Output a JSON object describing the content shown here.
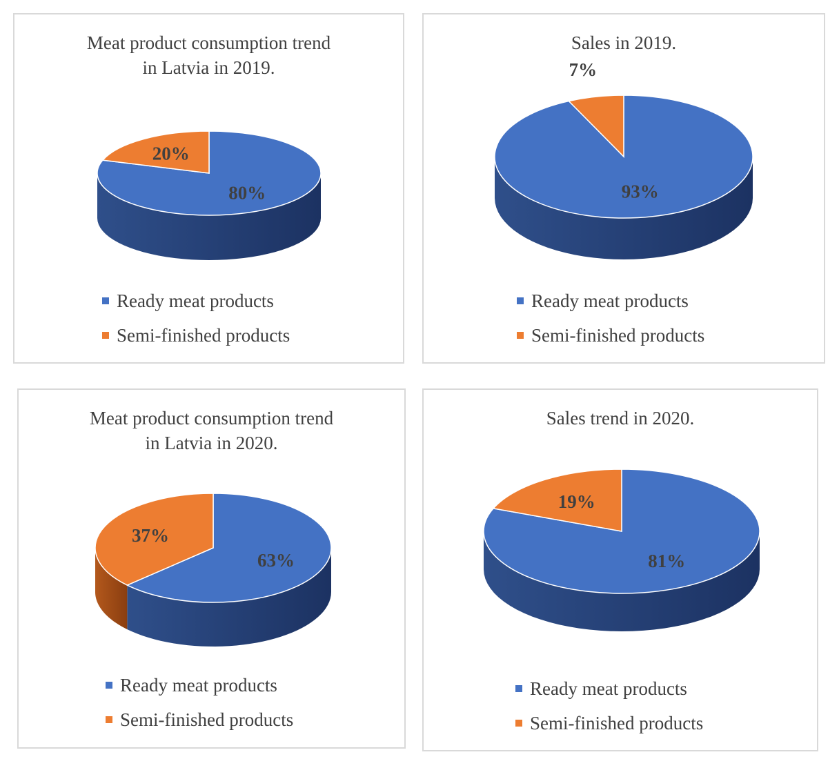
{
  "colors": {
    "ready_meat_products": "#4472c4",
    "semi_finished_products": "#ed7d31"
  },
  "legend_labels": [
    "Ready meat products",
    "Semi-finished products"
  ],
  "chart_data": [
    {
      "type": "pie",
      "style": "3d",
      "title": "Meat product consumption trend\nin Latvia in 2019.",
      "categories": [
        "Ready meat products",
        "Semi-finished products"
      ],
      "values": [
        80,
        20
      ],
      "labels": [
        "80%",
        "20%"
      ],
      "legend_position": "bottom"
    },
    {
      "type": "pie",
      "style": "3d",
      "title": "Sales in 2019.",
      "categories": [
        "Ready meat products",
        "Semi-finished products"
      ],
      "values": [
        93,
        7
      ],
      "labels": [
        "93%",
        "7%"
      ],
      "legend_position": "bottom"
    },
    {
      "type": "pie",
      "style": "3d",
      "title": "Meat product consumption trend\nin Latvia in 2020.",
      "categories": [
        "Ready meat products",
        "Semi-finished products"
      ],
      "values": [
        63,
        37
      ],
      "labels": [
        "63%",
        "37%"
      ],
      "legend_position": "bottom"
    },
    {
      "type": "pie",
      "style": "3d",
      "title": "Sales trend in 2020.",
      "categories": [
        "Ready meat products",
        "Semi-finished products"
      ],
      "values": [
        81,
        19
      ],
      "labels": [
        "81%",
        "19%"
      ],
      "legend_position": "bottom"
    }
  ]
}
